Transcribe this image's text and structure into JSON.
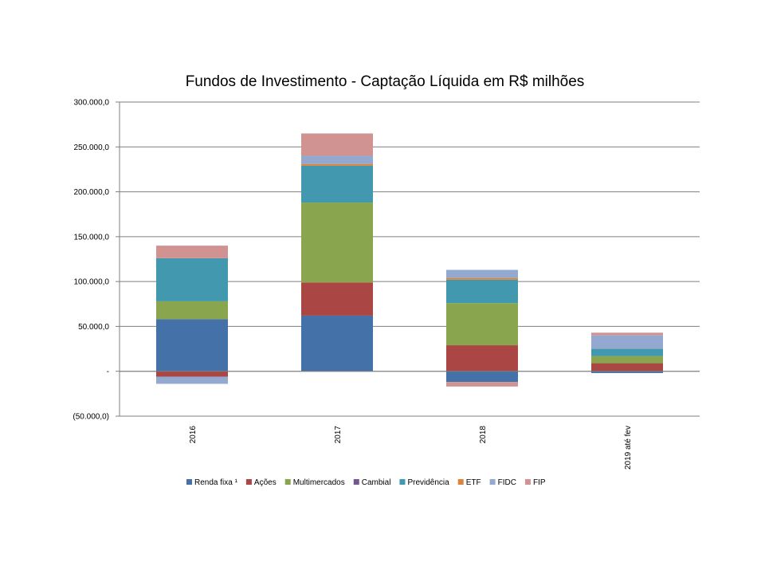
{
  "chart_data": {
    "type": "bar",
    "stacked": true,
    "title": "Fundos de Investimento - Captação Líquida em R$ milhões",
    "categories": [
      "2016",
      "2017",
      "2018",
      "2019 até fev"
    ],
    "ylim": [
      -50000,
      300000
    ],
    "yticks": [
      {
        "value": 300000,
        "label": "300.000,0"
      },
      {
        "value": 250000,
        "label": "250.000,0"
      },
      {
        "value": 200000,
        "label": "200.000,0"
      },
      {
        "value": 150000,
        "label": "150.000,0"
      },
      {
        "value": 100000,
        "label": "100.000,0"
      },
      {
        "value": 50000,
        "label": "50.000,0"
      },
      {
        "value": 0,
        "label": "-"
      },
      {
        "value": -50000,
        "label": "(50.000,0)"
      }
    ],
    "grid": true,
    "legend_position": "bottom",
    "series": [
      {
        "name": "Renda fixa ¹",
        "color": "#4472A8",
        "values": [
          58000,
          62000,
          -12000,
          -2000
        ]
      },
      {
        "name": "Ações",
        "color": "#AA4643",
        "values": [
          -6000,
          37000,
          29000,
          9000
        ]
      },
      {
        "name": "Multimercados",
        "color": "#89A54E",
        "values": [
          20000,
          89000,
          47000,
          8000
        ]
      },
      {
        "name": "Cambial",
        "color": "#71588F",
        "values": [
          0,
          0,
          0,
          0
        ]
      },
      {
        "name": "Previdência",
        "color": "#4198AF",
        "values": [
          48000,
          41000,
          26000,
          8000
        ]
      },
      {
        "name": "ETF",
        "color": "#DB843D",
        "values": [
          0,
          2000,
          2000,
          0
        ]
      },
      {
        "name": "FIDC",
        "color": "#93A9CF",
        "values": [
          -8000,
          9000,
          9000,
          15000
        ]
      },
      {
        "name": "FIP",
        "color": "#D19392",
        "values": [
          14000,
          25000,
          -5000,
          3000
        ]
      }
    ]
  }
}
